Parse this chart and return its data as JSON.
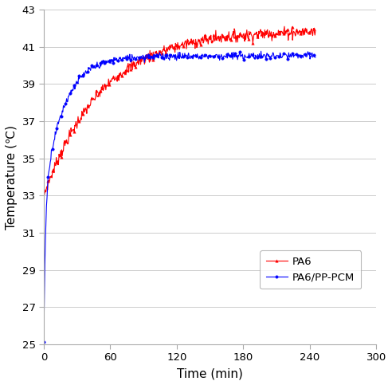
{
  "title": "",
  "xlabel": "Time (min)",
  "ylabel": "Temperature (℃)",
  "xlim": [
    0,
    300
  ],
  "ylim": [
    25,
    43
  ],
  "xticks": [
    0,
    60,
    120,
    180,
    240,
    300
  ],
  "yticks": [
    25,
    27,
    29,
    31,
    33,
    35,
    37,
    39,
    41,
    43
  ],
  "pa6_color": "#FF0000",
  "pcm_color": "#0000FF",
  "pa6_label": "PA6",
  "pcm_label": "PA6/PP-PCM",
  "pa6_start": 33.0,
  "pa6_plateau": 41.9,
  "pa6_tau": 52.0,
  "pcm_start": 25.0,
  "pcm_plateau": 40.5,
  "pcm_tau": 18.0,
  "time_max": 245,
  "noise_pa6": 0.15,
  "noise_pcm": 0.1,
  "grid_color": "#cccccc",
  "background_color": "#ffffff",
  "legend_loc": "lower right",
  "figsize": [
    4.92,
    4.83
  ],
  "dpi": 100
}
